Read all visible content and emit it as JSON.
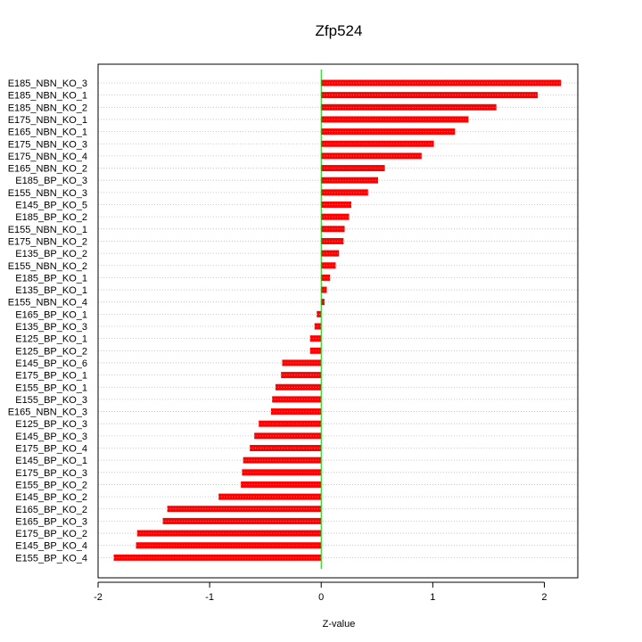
{
  "chart_data": {
    "type": "bar",
    "orientation": "horizontal",
    "title": "Zfp524",
    "xlabel": "Z-value",
    "ylabel": "",
    "xlim": [
      -2.0,
      2.3
    ],
    "x_ticks": [
      -2,
      -1,
      0,
      1,
      2
    ],
    "grid": "horizontal dotted",
    "categories": [
      "E185_NBN_KO_3",
      "E185_NBN_KO_1",
      "E185_NBN_KO_2",
      "E175_NBN_KO_1",
      "E165_NBN_KO_1",
      "E175_NBN_KO_3",
      "E175_NBN_KO_4",
      "E165_NBN_KO_2",
      "E185_BP_KO_3",
      "E155_NBN_KO_3",
      "E145_BP_KO_5",
      "E185_BP_KO_2",
      "E155_NBN_KO_1",
      "E175_NBN_KO_2",
      "E135_BP_KO_2",
      "E155_NBN_KO_2",
      "E185_BP_KO_1",
      "E135_BP_KO_1",
      "E155_NBN_KO_4",
      "E165_BP_KO_1",
      "E135_BP_KO_3",
      "E125_BP_KO_1",
      "E125_BP_KO_2",
      "E145_BP_KO_6",
      "E175_BP_KO_1",
      "E155_BP_KO_1",
      "E155_BP_KO_3",
      "E165_NBN_KO_3",
      "E125_BP_KO_3",
      "E145_BP_KO_3",
      "E175_BP_KO_4",
      "E145_BP_KO_1",
      "E175_BP_KO_3",
      "E155_BP_KO_2",
      "E145_BP_KO_2",
      "E165_BP_KO_2",
      "E165_BP_KO_3",
      "E175_BP_KO_2",
      "E145_BP_KO_4",
      "E155_BP_KO_4"
    ],
    "values": [
      2.15,
      1.94,
      1.57,
      1.32,
      1.2,
      1.01,
      0.9,
      0.57,
      0.51,
      0.42,
      0.27,
      0.25,
      0.21,
      0.2,
      0.16,
      0.13,
      0.08,
      0.05,
      0.03,
      -0.04,
      -0.06,
      -0.1,
      -0.1,
      -0.35,
      -0.36,
      -0.41,
      -0.44,
      -0.45,
      -0.56,
      -0.6,
      -0.64,
      -0.7,
      -0.71,
      -0.72,
      -0.92,
      -1.38,
      -1.42,
      -1.65,
      -1.66,
      -1.86
    ],
    "bar_color": "#ff0000",
    "zero_line_color": "#00cc00"
  }
}
